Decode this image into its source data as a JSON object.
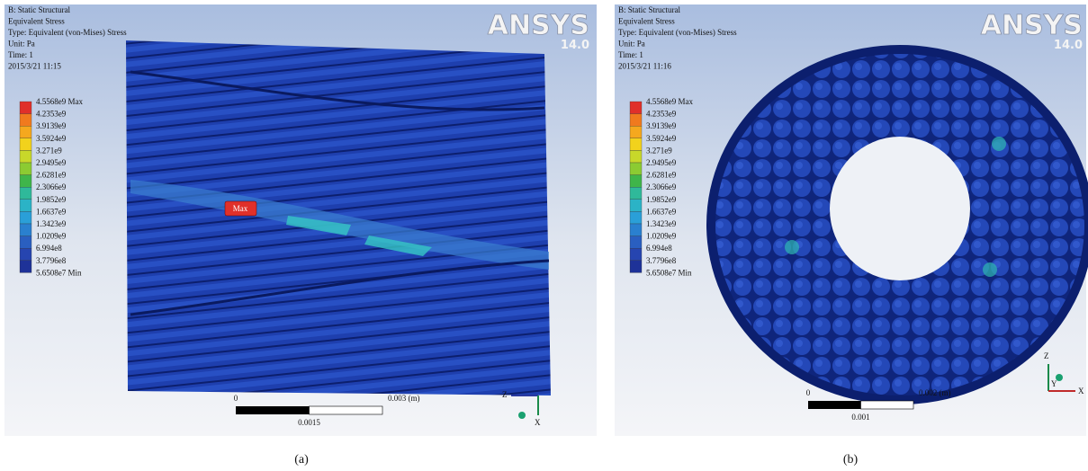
{
  "panels": [
    {
      "header": [
        "B: Static Structural",
        "Equivalent Stress",
        "Type: Equivalent (von-Mises) Stress",
        "Unit: Pa",
        "Time: 1",
        "2015/3/21 11:15"
      ],
      "logo": "ANSYS",
      "version": "14.0",
      "legend": [
        "4.5568e9 Max",
        "4.2353e9",
        "3.9139e9",
        "3.5924e9",
        "3.271e9",
        "2.9495e9",
        "2.6281e9",
        "2.3066e9",
        "1.9852e9",
        "1.6637e9",
        "1.3423e9",
        "1.0209e9",
        "6.994e8",
        "3.7796e8",
        "5.6508e7 Min"
      ],
      "scale": {
        "start": "0",
        "end": "0.003 (m)",
        "mid": "0.0015"
      },
      "axes": [
        "Z",
        "X"
      ],
      "max_marker": "Max",
      "caption": "(a)"
    },
    {
      "header": [
        "B: Static Structural",
        "Equivalent Stress",
        "Type: Equivalent (von-Mises) Stress",
        "Unit: Pa",
        "Time: 1",
        "2015/3/21 11:16"
      ],
      "logo": "ANSYS",
      "version": "14.0",
      "legend": [
        "4.5568e9 Max",
        "4.2353e9",
        "3.9139e9",
        "3.5924e9",
        "3.271e9",
        "2.9495e9",
        "2.6281e9",
        "2.3066e9",
        "1.9852e9",
        "1.6637e9",
        "1.3423e9",
        "1.0209e9",
        "6.994e8",
        "3.7796e8",
        "5.6508e7 Min"
      ],
      "scale": {
        "start": "0",
        "end": "0.002 (m)",
        "mid": "0.001"
      },
      "axes": [
        "Z",
        "Y",
        "X"
      ],
      "caption": "(b)"
    }
  ]
}
